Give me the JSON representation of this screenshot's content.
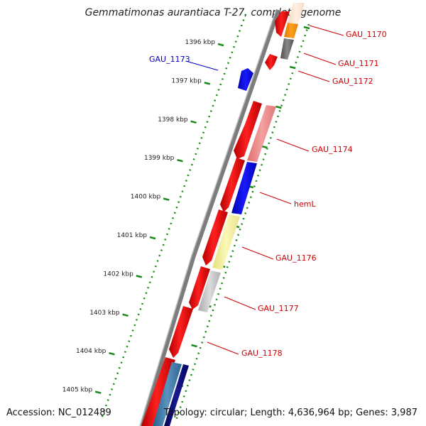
{
  "title": "Gemmatimonas aurantiaca T-27, complete genome",
  "footer": {
    "accession": "Accession: NC_012489",
    "summary": "Topology: circular; Length: 4,636,964 bp; Genes: 3,987"
  },
  "ticks": [
    {
      "label": "1396 kbp",
      "kbp": 1396
    },
    {
      "label": "1397 kbp",
      "kbp": 1397
    },
    {
      "label": "1398 kbp",
      "kbp": 1398
    },
    {
      "label": "1399 kbp",
      "kbp": 1399
    },
    {
      "label": "1400 kbp",
      "kbp": 1400
    },
    {
      "label": "1401 kbp",
      "kbp": 1401
    },
    {
      "label": "1402 kbp",
      "kbp": 1402
    },
    {
      "label": "1403 kbp",
      "kbp": 1403
    },
    {
      "label": "1404 kbp",
      "kbp": 1404
    },
    {
      "label": "1405 kbp",
      "kbp": 1405
    }
  ],
  "gene_labels": [
    {
      "text": "GAU_1170",
      "color": "#cc0000"
    },
    {
      "text": "GAU_1171",
      "color": "#cc0000"
    },
    {
      "text": "GAU_1172",
      "color": "#cc0000"
    },
    {
      "text": "GAU_1173",
      "color": "#0000cc"
    },
    {
      "text": "GAU_1174",
      "color": "#cc0000"
    },
    {
      "text": "hemL",
      "color": "#cc0000"
    },
    {
      "text": "GAU_1176",
      "color": "#cc0000"
    },
    {
      "text": "GAU_1177",
      "color": "#cc0000"
    },
    {
      "text": "GAU_1178",
      "color": "#cc0000"
    }
  ],
  "colors": {
    "backbone": "#808080",
    "cds_forward": "#ff0000",
    "cds_reverse": "#0000ff",
    "tick_dots": "#1a8a1a",
    "label_forward": "#cc0000",
    "label_reverse": "#0000cc"
  }
}
